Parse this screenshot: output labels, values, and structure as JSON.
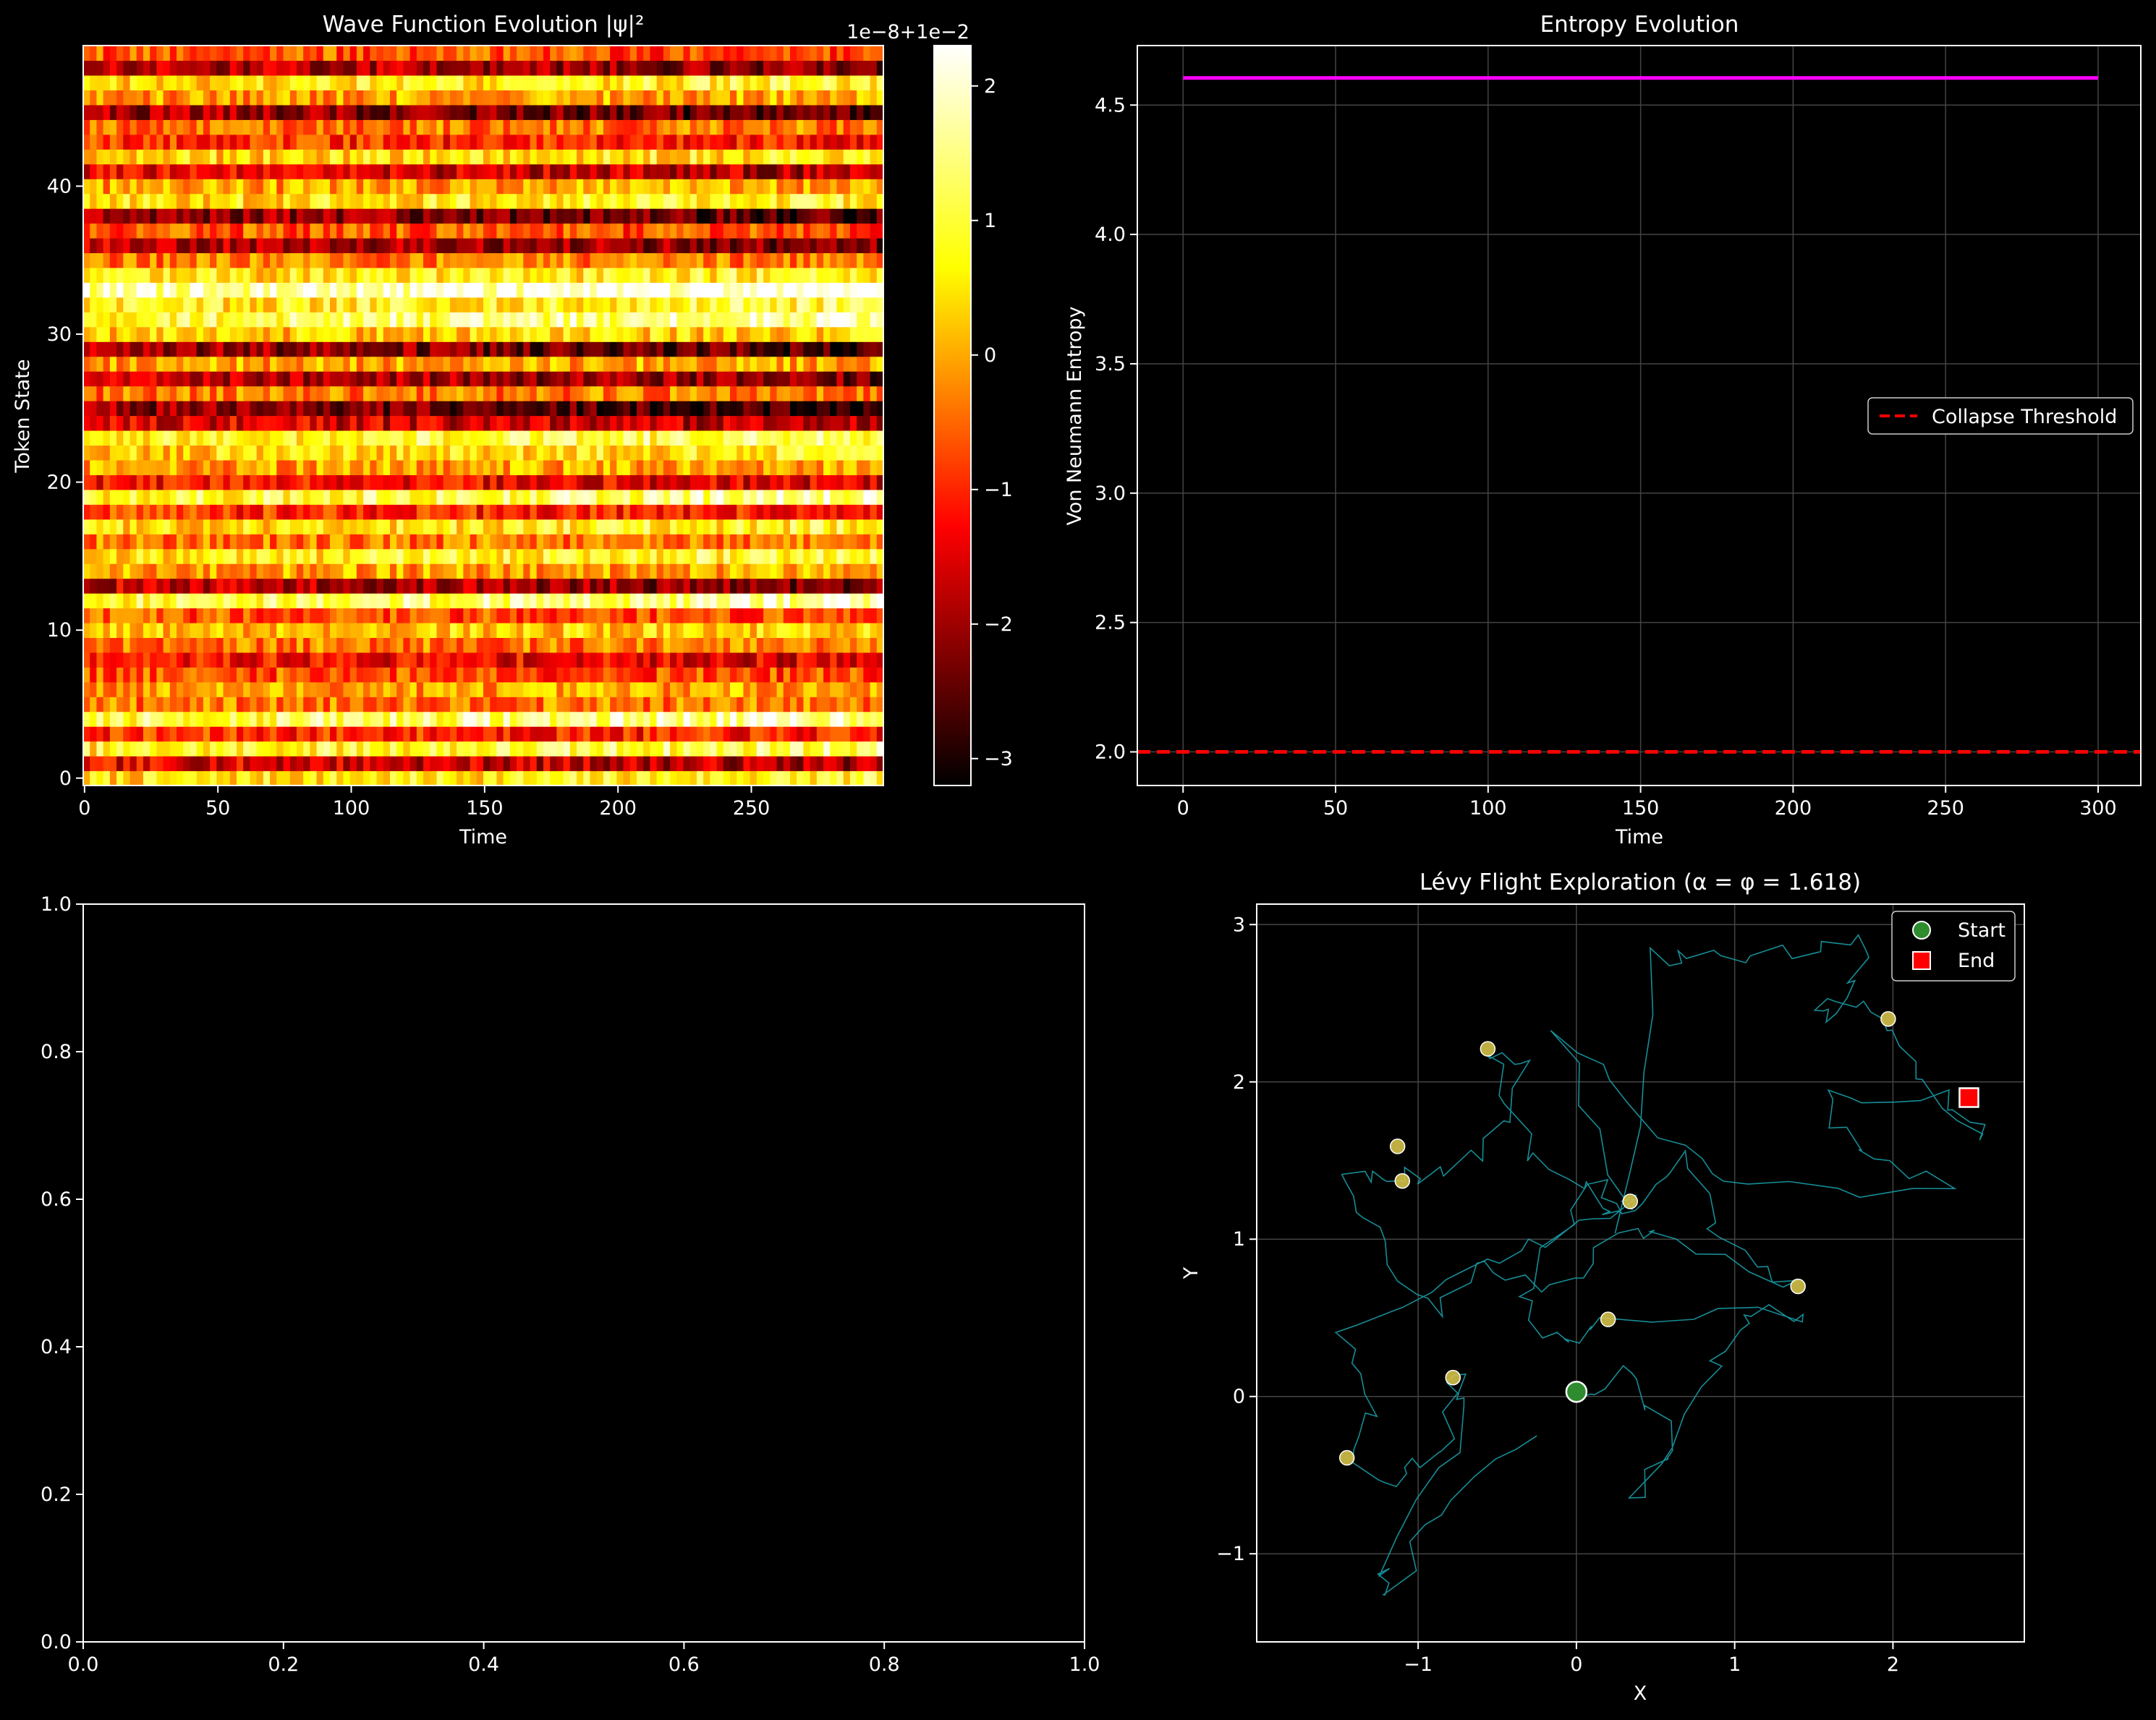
{
  "chart_data": [
    {
      "type": "heatmap",
      "title": "Wave Function Evolution |ψ|²",
      "xlabel": "Time",
      "ylabel": "Token State",
      "xlim": [
        0,
        299
      ],
      "ylim": [
        0,
        49
      ],
      "x_ticks": [
        "0",
        "50",
        "100",
        "150",
        "200",
        "250"
      ],
      "y_ticks": [
        "0",
        "10",
        "20",
        "30",
        "40"
      ],
      "colormap": "hot",
      "colorbar": {
        "offset_label": "1e−8+1e−2",
        "range": [
          -3.2,
          2.3
        ],
        "ticks": [
          "−3",
          "−2",
          "−1",
          "0",
          "1",
          "2"
        ]
      },
      "row_levels": [
        0.7,
        0.35,
        0.75,
        0.45,
        0.8,
        0.55,
        0.6,
        0.5,
        0.4,
        0.55,
        0.65,
        0.5,
        0.8,
        0.3,
        0.6,
        0.72,
        0.55,
        0.7,
        0.45,
        0.78,
        0.4,
        0.6,
        0.68,
        0.75,
        0.35,
        0.22,
        0.55,
        0.3,
        0.6,
        0.25,
        0.65,
        0.8,
        0.72,
        0.88,
        0.7,
        0.55,
        0.3,
        0.5,
        0.25,
        0.7,
        0.6,
        0.35,
        0.68,
        0.45,
        0.55,
        0.25,
        0.6,
        0.7,
        0.3,
        0.5
      ],
      "note_colors": {
        "low": "#000000",
        "mid": "#ff2a00",
        "high": "#ffff00",
        "top": "#ffffff"
      }
    },
    {
      "type": "line",
      "title": "Entropy Evolution",
      "xlabel": "Time",
      "ylabel": "Von Neumann Entropy",
      "xlim": [
        -15,
        314
      ],
      "ylim": [
        1.87,
        4.73
      ],
      "x_ticks": [
        0,
        50,
        100,
        150,
        200,
        250,
        300
      ],
      "y_ticks": [
        2.0,
        2.5,
        3.0,
        3.5,
        4.0,
        4.5
      ],
      "y_tick_labels": [
        "2.0",
        "2.5",
        "3.0",
        "3.5",
        "4.0",
        "4.5"
      ],
      "grid": true,
      "series": [
        {
          "x": [
            0,
            300
          ],
          "y": [
            4.605,
            4.605
          ],
          "color": "#ff00ff"
        }
      ],
      "hlines": [
        {
          "y": 2.0,
          "name": "Collapse Threshold",
          "color": "#ff0000",
          "style": "dashed"
        }
      ],
      "legend": {
        "position": "center-right",
        "entries": [
          "Collapse Threshold"
        ]
      }
    },
    {
      "type": "scatter",
      "title": "",
      "xlim": [
        0,
        1
      ],
      "ylim": [
        0,
        1
      ],
      "x_ticks": [
        "0.0",
        "0.2",
        "0.4",
        "0.6",
        "0.8",
        "1.0"
      ],
      "y_ticks": [
        "0.0",
        "0.2",
        "0.4",
        "0.6",
        "0.8",
        "1.0"
      ],
      "series": []
    },
    {
      "type": "line",
      "title": "Lévy Flight Exploration (α = φ = 1.618)",
      "xlabel": "X",
      "ylabel": "Y",
      "xlim": [
        -2.02,
        2.83
      ],
      "ylim": [
        -1.56,
        3.13
      ],
      "x_ticks": [
        -1,
        0,
        1,
        2
      ],
      "x_tick_labels": [
        "−1",
        "0",
        "1",
        "2"
      ],
      "y_ticks": [
        -1,
        0,
        1,
        2,
        3
      ],
      "y_tick_labels": [
        "−1",
        "0",
        "1",
        "2",
        "3"
      ],
      "grid": true,
      "path_color": "#1aa6b0",
      "path": [
        [
          0.02,
          0.03
        ],
        [
          0.3,
          0.15
        ],
        [
          0.6,
          -0.3
        ],
        [
          0.4,
          -0.65
        ],
        [
          0.85,
          0.2
        ],
        [
          1.1,
          0.55
        ],
        [
          1.45,
          0.5
        ],
        [
          0.2,
          0.5
        ],
        [
          -0.1,
          0.3
        ],
        [
          -0.35,
          0.6
        ],
        [
          0.1,
          1.35
        ],
        [
          0.35,
          1.2
        ],
        [
          0.7,
          1.5
        ],
        [
          0.9,
          0.95
        ],
        [
          1.4,
          0.7
        ],
        [
          0.6,
          1.0
        ],
        [
          0.25,
          1.0
        ],
        [
          -0.15,
          0.7
        ],
        [
          -0.55,
          0.85
        ],
        [
          -0.9,
          0.5
        ],
        [
          -1.2,
          0.95
        ],
        [
          -1.5,
          1.35
        ],
        [
          -1.25,
          1.45
        ],
        [
          -0.95,
          1.35
        ],
        [
          -0.55,
          1.6
        ],
        [
          -0.35,
          2.1
        ],
        [
          -0.55,
          2.22
        ],
        [
          -0.3,
          1.55
        ],
        [
          0.1,
          1.3
        ],
        [
          0.25,
          1.1
        ],
        [
          0.5,
          2.8
        ],
        [
          0.8,
          2.8
        ],
        [
          1.4,
          2.8
        ],
        [
          1.85,
          2.88
        ],
        [
          1.65,
          2.4
        ],
        [
          1.55,
          2.55
        ],
        [
          1.98,
          2.4
        ],
        [
          2.1,
          2.05
        ],
        [
          2.6,
          1.6
        ],
        [
          2.3,
          1.9
        ],
        [
          1.55,
          1.95
        ],
        [
          1.8,
          1.5
        ],
        [
          2.35,
          1.35
        ],
        [
          1.1,
          1.3
        ],
        [
          0.5,
          1.7
        ],
        [
          -0.1,
          2.35
        ],
        [
          0.3,
          1.25
        ],
        [
          0.35,
          1.23
        ],
        [
          -0.3,
          0.95
        ],
        [
          -0.8,
          0.75
        ],
        [
          -1.5,
          0.4
        ],
        [
          -1.3,
          0.0
        ],
        [
          -1.45,
          -0.4
        ],
        [
          -1.1,
          -0.55
        ],
        [
          -0.85,
          -0.3
        ],
        [
          -0.78,
          0.12
        ],
        [
          -0.65,
          -0.1
        ],
        [
          -1.25,
          -1.1
        ],
        [
          -1.2,
          -1.3
        ],
        [
          -0.9,
          -0.7
        ],
        [
          -0.25,
          -0.25
        ]
      ],
      "markers": [
        {
          "x": 0.0,
          "y": 0.03,
          "color": "#2e8b2e",
          "shape": "circle",
          "legend": "Start"
        },
        {
          "x": 2.48,
          "y": 1.9,
          "color": "#ff0000",
          "shape": "square",
          "legend": "End"
        }
      ],
      "highlight_points": {
        "color": "#d4c24a",
        "points": [
          [
            -0.56,
            2.21
          ],
          [
            1.97,
            2.4
          ],
          [
            -1.13,
            1.59
          ],
          [
            -1.1,
            1.37
          ],
          [
            0.34,
            1.24
          ],
          [
            1.4,
            0.7
          ],
          [
            0.2,
            0.49
          ],
          [
            -0.78,
            0.12
          ],
          [
            -1.45,
            -0.39
          ]
        ]
      },
      "legend": {
        "position": "top-right",
        "entries": [
          "Start",
          "End"
        ]
      }
    }
  ]
}
